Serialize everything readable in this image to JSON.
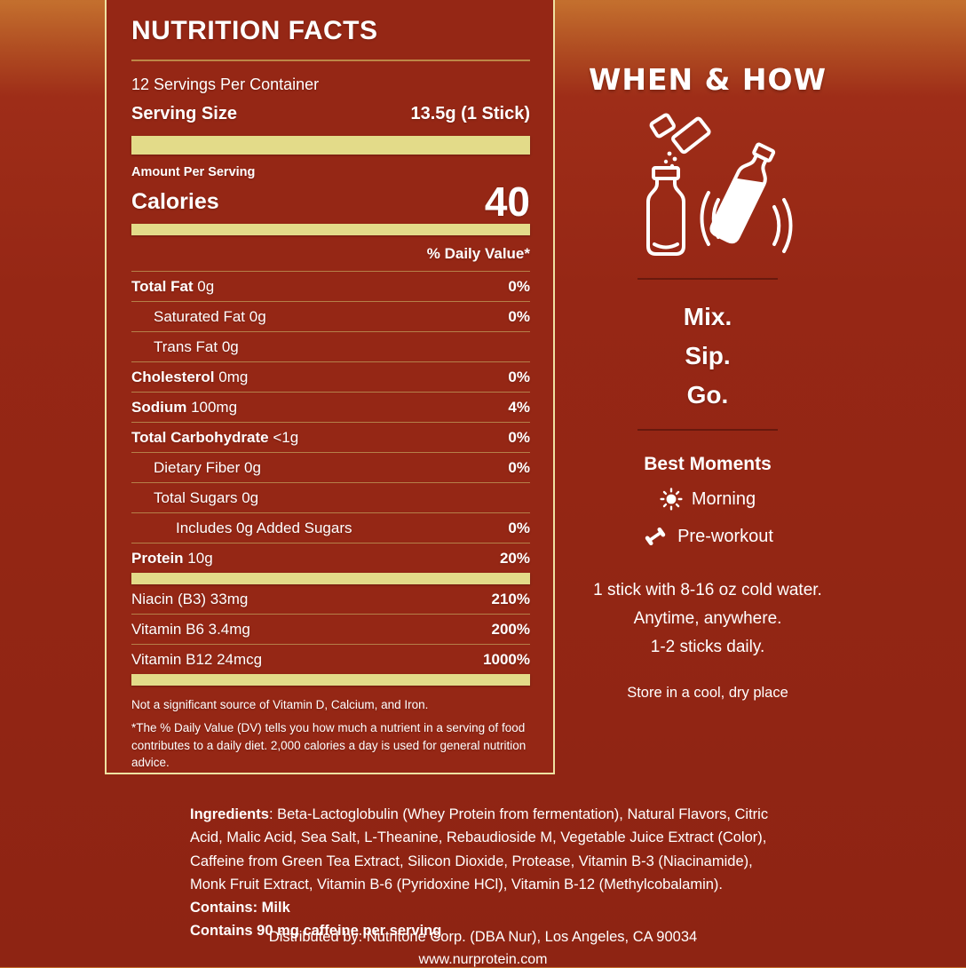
{
  "colors": {
    "background_top": "#c4702e",
    "background_red": "#8e2413",
    "panel_red": "#952715",
    "panel_border": "#efe2a2",
    "separator_bar": "#e3db89",
    "row_divider": "#b57f49",
    "text": "#ffffff"
  },
  "panel": {
    "title": "NUTRITION FACTS",
    "servings_per_container": "12 Servings Per Container",
    "serving_size_label": "Serving Size",
    "serving_size_value": "13.5g (1 Stick)",
    "amount_per_serving": "Amount Per Serving",
    "calories_label": "Calories",
    "calories_value": "40",
    "daily_value_header": "% Daily Value*",
    "rows": [
      {
        "label": "Total Fat",
        "amount": "0g",
        "dv": "0%",
        "indent": 0,
        "bold": true
      },
      {
        "label": "Saturated Fat",
        "amount": "0g",
        "dv": "0%",
        "indent": 1,
        "bold": false
      },
      {
        "label": "Trans Fat",
        "amount": "0g",
        "dv": "",
        "indent": 1,
        "bold": false
      },
      {
        "label": "Cholesterol",
        "amount": "0mg",
        "dv": "0%",
        "indent": 0,
        "bold": true
      },
      {
        "label": "Sodium",
        "amount": "100mg",
        "dv": "4%",
        "indent": 0,
        "bold": true
      },
      {
        "label": "Total Carbohydrate",
        "amount": "<1g",
        "dv": "0%",
        "indent": 0,
        "bold": true
      },
      {
        "label": "Dietary Fiber",
        "amount": "0g",
        "dv": "0%",
        "indent": 1,
        "bold": false
      },
      {
        "label": "Total Sugars",
        "amount": "0g",
        "dv": "",
        "indent": 1,
        "bold": false
      },
      {
        "label": "Includes 0g Added Sugars",
        "amount": "",
        "dv": "0%",
        "indent": 2,
        "bold": false
      },
      {
        "label": "Protein",
        "amount": "10g",
        "dv": "20%",
        "indent": 0,
        "bold": true
      }
    ],
    "vitamins": [
      {
        "label": "Niacin (B3) 33mg",
        "dv": "210%"
      },
      {
        "label": "Vitamin B6 3.4mg",
        "dv": "200%"
      },
      {
        "label": "Vitamin B12 24mcg",
        "dv": "1000%"
      }
    ],
    "footnote1": "Not a significant source of Vitamin D, Calcium, and Iron.",
    "footnote2": "*The % Daily Value (DV) tells you how much a nutrient in a serving of food contributes to a daily diet. 2,000 calories a day is used for general nutrition advice."
  },
  "side": {
    "title": "WHEN & HOW",
    "icons": [
      "stick-packet-icon",
      "bottle-icon",
      "shake-bottle-icon"
    ],
    "steps": [
      "Mix.",
      "Sip.",
      "Go."
    ],
    "best_moments_title": "Best Moments",
    "moments": [
      {
        "icon": "sun-icon",
        "label": "Morning"
      },
      {
        "icon": "dumbbell-icon",
        "label": "Pre-workout"
      }
    ],
    "usage_lines": [
      "1 stick with 8-16 oz cold water.",
      "Anytime, anywhere.",
      "1-2 sticks daily."
    ],
    "storage": "Store in a cool, dry place"
  },
  "footer": {
    "ingredients_label": "Ingredients",
    "ingredients_text": ": Beta-Lactoglobulin (Whey Protein from fermentation), Natural Flavors, Citric Acid, Malic Acid, Sea Salt, L-Theanine, Rebaudioside M, Vegetable Juice Extract (Color), Caffeine from Green Tea Extract, Silicon Dioxide, Protease, Vitamin B-3 (Niacinamide), Monk Fruit Extract, Vitamin B-6 (Pyridoxine HCl), Vitamin B-12 (Methylcobalamin).",
    "contains_line": "Contains: Milk",
    "caffeine_line": "Contains 90 mg caffeine per serving",
    "distributor": "Distributed by: Nutritone Corp. (DBA Nur), Los Angeles, CA 90034",
    "website": "www.nurprotein.com"
  }
}
